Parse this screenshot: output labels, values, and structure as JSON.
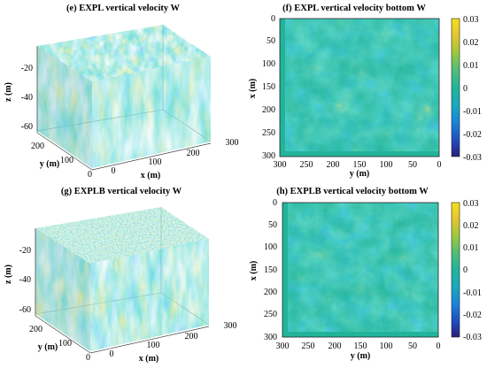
{
  "colors": {
    "colormap": [
      "#2a1f7a",
      "#1f4fc4",
      "#1a85d8",
      "#18aabf",
      "#22b49b",
      "#4fbd78",
      "#9cc83e",
      "#e6c42f",
      "#f3e21e"
    ]
  },
  "chart_data": [
    {
      "type": "heatmap",
      "panel": "3d-box",
      "title": "(e) EXPL vertical velocity W",
      "xlabel": "x (m)",
      "ylabel": "y (m)",
      "zlabel": "z (m)",
      "x_ticks": [
        "0",
        "100",
        "200",
        "300"
      ],
      "y_ticks": [
        "0",
        "100",
        "200"
      ],
      "z_ticks": [
        "-20",
        "-40",
        "-60"
      ],
      "top_texture": "fine"
    },
    {
      "type": "heatmap",
      "panel": "2d-map",
      "title": "(f) EXPL vertical velocity bottom W",
      "xlabel": "y (m)",
      "ylabel": "x (m)",
      "x_ticks": [
        "300",
        "250",
        "200",
        "150",
        "100",
        "50",
        "0"
      ],
      "y_ticks": [
        "0",
        "50",
        "100",
        "150",
        "200",
        "250",
        "300"
      ],
      "colorbar_ticks": [
        "0.03",
        "0.02",
        "0.01",
        "0",
        "-0.01",
        "-0.02",
        "-0.03"
      ],
      "clim": [
        -0.03,
        0.03
      ]
    },
    {
      "type": "heatmap",
      "panel": "3d-box",
      "title": "(g) EXPLB vertical velocity W",
      "xlabel": "x (m)",
      "ylabel": "y (m)",
      "zlabel": "z (m)",
      "x_ticks": [
        "0",
        "100",
        "200",
        "300"
      ],
      "y_ticks": [
        "0",
        "100",
        "200"
      ],
      "z_ticks": [
        "-20",
        "-40",
        "-60"
      ],
      "top_texture": "speckled"
    },
    {
      "type": "heatmap",
      "panel": "2d-map",
      "title": "(h) EXPLB vertical velocity bottom W",
      "xlabel": "y (m)",
      "ylabel": "x (m)",
      "x_ticks": [
        "300",
        "250",
        "200",
        "150",
        "100",
        "50",
        "0"
      ],
      "y_ticks": [
        "0",
        "50",
        "100",
        "150",
        "200",
        "250",
        "300"
      ],
      "colorbar_ticks": [
        "0.03",
        "0.02",
        "0.01",
        "0",
        "-0.01",
        "-0.02",
        "-0.03"
      ],
      "clim": [
        -0.03,
        0.03
      ]
    }
  ]
}
